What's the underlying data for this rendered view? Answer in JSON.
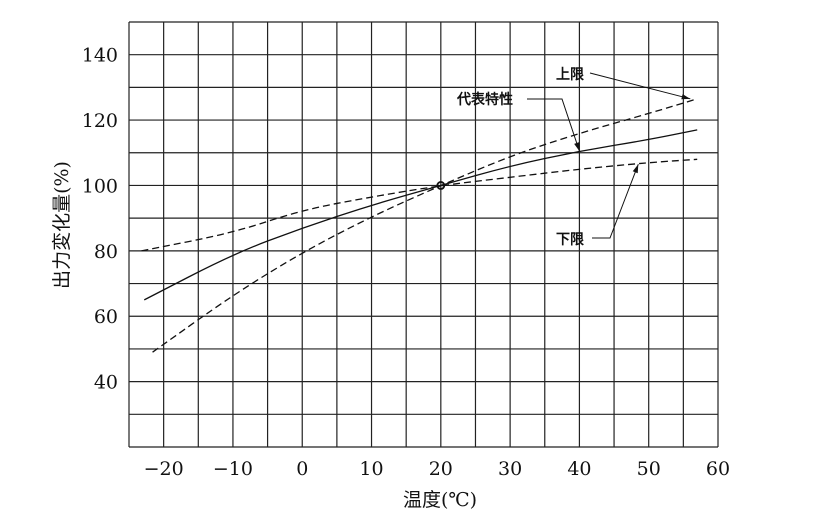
{
  "chart_data": {
    "type": "line",
    "title": "",
    "xlabel": "温度(℃)",
    "ylabel": "出力変化量(%)",
    "xlim": [
      -25,
      60
    ],
    "ylim": [
      20,
      150
    ],
    "xticks": [
      -20,
      -10,
      0,
      10,
      20,
      30,
      40,
      50,
      60
    ],
    "yticks": [
      40,
      60,
      80,
      100,
      120,
      140
    ],
    "grid": true,
    "grid_x_step": 5,
    "grid_y_step": 10,
    "reference_point": {
      "x": 20,
      "y": 100
    },
    "series": [
      {
        "name": "代表特性",
        "style": "solid",
        "x": [
          -22.8,
          -10,
          0,
          10,
          20,
          30,
          40,
          50,
          57
        ],
        "y": [
          65,
          79,
          87,
          94,
          100,
          106,
          110.5,
          114,
          117
        ]
      },
      {
        "name": "上限",
        "style": "dashed",
        "x": [
          -21.6,
          -10,
          0,
          10,
          20,
          30,
          40,
          50,
          57
        ],
        "y": [
          49,
          66.5,
          79.5,
          90.5,
          100,
          109,
          116,
          122,
          126.5
        ]
      },
      {
        "name": "下限",
        "style": "dashed",
        "x": [
          -23.2,
          -10,
          0,
          10,
          20,
          30,
          40,
          50,
          57
        ],
        "y": [
          80,
          85.5,
          92.5,
          96.5,
          100,
          102.5,
          105,
          107,
          108
        ]
      }
    ],
    "annotations": [
      {
        "text": "上限",
        "target": {
          "x": 56,
          "y": 126.5
        }
      },
      {
        "text": "代表特性",
        "target": {
          "x": 40,
          "y": 110.5
        }
      },
      {
        "text": "下限",
        "target": {
          "x": 48.5,
          "y": 106.5
        }
      }
    ]
  }
}
